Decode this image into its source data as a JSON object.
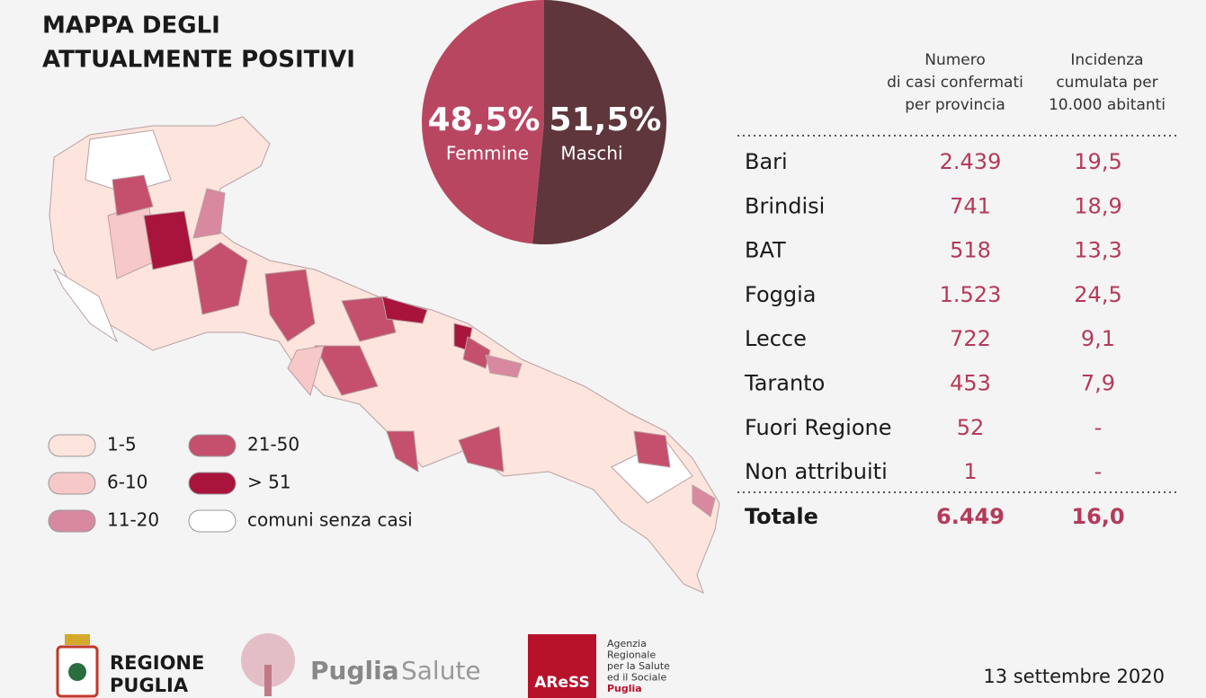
{
  "title": [
    "MAPPA DEGLI",
    "ATTUALMENTE POSITIVI"
  ],
  "chart_data": {
    "type": "pie",
    "categories": [
      "Femmine",
      "Maschi"
    ],
    "values": [
      48.5,
      51.5
    ],
    "value_labels": [
      "48,5%",
      "51,5%"
    ],
    "colors": [
      "#b94661",
      "#5e363b"
    ]
  },
  "legend": [
    {
      "label": "1-5",
      "color": "#fde4dc"
    },
    {
      "label": "6-10",
      "color": "#f7c8c8"
    },
    {
      "label": "11-20",
      "color": "#d9899f"
    },
    {
      "label": "21-50",
      "color": "#c4506d"
    },
    {
      "label": "> 51",
      "color": "#a8143c"
    },
    {
      "label": "comuni senza casi",
      "color": "#ffffff"
    }
  ],
  "table": {
    "headers": [
      [
        "Numero",
        "di casi confermati",
        "per provincia"
      ],
      [
        "Incidenza",
        "cumulata per",
        "10.000 abitanti"
      ]
    ],
    "rows": [
      [
        "Bari",
        "2.439",
        "19,5"
      ],
      [
        "Brindisi",
        "741",
        "18,9"
      ],
      [
        "BAT",
        "518",
        "13,3"
      ],
      [
        "Foggia",
        "1.523",
        "24,5"
      ],
      [
        "Lecce",
        "722",
        "9,1"
      ],
      [
        "Taranto",
        "453",
        "7,9"
      ],
      [
        "Fuori Regione",
        "52",
        "-"
      ],
      [
        "Non attribuiti",
        "1",
        "-"
      ]
    ],
    "total": [
      "Totale",
      "6.449",
      "16,0"
    ]
  },
  "footer": {
    "regione": [
      "REGIONE",
      "PUGLIA"
    ],
    "salute": [
      "Puglia",
      "Salute"
    ],
    "aress": {
      "logo": "AReSS",
      "lines": [
        "Agenzia",
        "Regionale",
        "per la Salute",
        "ed il Sociale",
        "Puglia"
      ]
    },
    "date": "13 settembre 2020"
  }
}
